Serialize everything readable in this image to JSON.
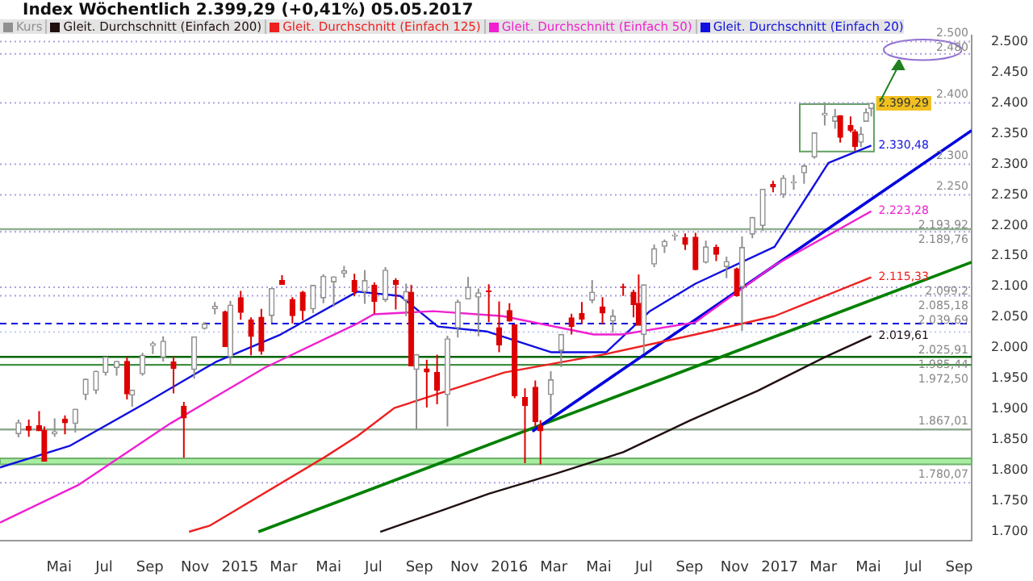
{
  "chart_data": {
    "type": "candlestick",
    "title": "Index   Wöchentlich   2.399,29 (+0,41%)   05.05.2017",
    "legend": "top left",
    "xlim": [
      "2014-02-10",
      "2017-09-18"
    ],
    "xticks": [
      {
        "value": "2014-05-01",
        "label": "Mai"
      },
      {
        "value": "2014-07-01",
        "label": "Jul"
      },
      {
        "value": "2014-09-01",
        "label": "Sep"
      },
      {
        "value": "2014-11-01",
        "label": "Nov"
      },
      {
        "value": "2015-01-01",
        "label": "2015"
      },
      {
        "value": "2015-03-01",
        "label": "Mar"
      },
      {
        "value": "2015-05-01",
        "label": "Mai"
      },
      {
        "value": "2015-07-01",
        "label": "Jul"
      },
      {
        "value": "2015-09-01",
        "label": "Sep"
      },
      {
        "value": "2015-11-01",
        "label": "Nov"
      },
      {
        "value": "2016-01-01",
        "label": "2016"
      },
      {
        "value": "2016-03-01",
        "label": "Mar"
      },
      {
        "value": "2016-05-01",
        "label": "Mai"
      },
      {
        "value": "2016-07-01",
        "label": "Jul"
      },
      {
        "value": "2016-09-01",
        "label": "Sep"
      },
      {
        "value": "2016-11-01",
        "label": "Nov"
      },
      {
        "value": "2017-01-01",
        "label": "2017"
      },
      {
        "value": "2017-03-01",
        "label": "Mar"
      },
      {
        "value": "2017-05-01",
        "label": "Mai"
      },
      {
        "value": "2017-07-01",
        "label": "Jul"
      },
      {
        "value": "2017-09-01",
        "label": "Sep"
      }
    ],
    "ylim": [
      1685,
      2510
    ],
    "yticks": [
      {
        "value": 1700,
        "label": "1.700"
      },
      {
        "value": 1750,
        "label": "1.750"
      },
      {
        "value": 1800,
        "label": "1.800"
      },
      {
        "value": 1850,
        "label": "1.850"
      },
      {
        "value": 1900,
        "label": "1.900"
      },
      {
        "value": 1950,
        "label": "1.950"
      },
      {
        "value": 2000,
        "label": "2.000"
      },
      {
        "value": 2050,
        "label": "2.050"
      },
      {
        "value": 2100,
        "label": "2.100"
      },
      {
        "value": 2150,
        "label": "2.150"
      },
      {
        "value": 2200,
        "label": "2.200"
      },
      {
        "value": 2250,
        "label": "2.250"
      },
      {
        "value": 2300,
        "label": "2.300"
      },
      {
        "value": 2350,
        "label": "2.350"
      },
      {
        "value": 2400,
        "label": "2.400"
      },
      {
        "value": 2450,
        "label": "2.450"
      },
      {
        "value": 2500,
        "label": "2.500"
      }
    ],
    "ref_lines": [
      {
        "axis": "y",
        "value": 2500,
        "label": "2.500",
        "color": "#b0a0e0",
        "line_style": "dotted"
      },
      {
        "axis": "y",
        "value": 2480,
        "label": "2.480",
        "color": "#b0a0e0",
        "line_style": "dotted"
      },
      {
        "axis": "y",
        "value": 2400,
        "label": "2.400",
        "color": "#b0a0e0",
        "line_style": "dotted"
      },
      {
        "axis": "y",
        "value": 2300,
        "label": "2.300",
        "color": "#b0a0e0",
        "line_style": "dotted"
      },
      {
        "axis": "y",
        "value": 2250,
        "label": "2.250",
        "color": "#b0a0e0",
        "line_style": "dotted"
      },
      {
        "axis": "y",
        "value": 2193.92,
        "label": "2.193,92",
        "color": "#90b090",
        "line_style": "solid"
      },
      {
        "axis": "y",
        "value": 2189.76,
        "label": "2.189,76",
        "color": "#b0a0e0",
        "line_style": "dotted"
      },
      {
        "axis": "y",
        "value": 2099.2,
        "label": "2.099,2",
        "color": "#b0a0e0",
        "line_style": "dotted"
      },
      {
        "axis": "y",
        "value": 2085.18,
        "label": "2.085,18",
        "color": "#b0a0e0",
        "line_style": "dotted"
      },
      {
        "axis": "y",
        "value": 2039.69,
        "label": "2.039,69",
        "color": "#0000e0",
        "line_style": "dashed"
      },
      {
        "axis": "y",
        "value": 2025.91,
        "label": "2.025,91",
        "color": "#c0c8f0",
        "line_style": "dotted"
      },
      {
        "axis": "y",
        "value": 1985.44,
        "label": "1.985,44",
        "color": "#006400",
        "line_style": "solid"
      },
      {
        "axis": "y",
        "value": 1972.5,
        "label": "1.972,50",
        "color": "#409040",
        "line_style": "solid"
      },
      {
        "axis": "y",
        "value": 1867.01,
        "label": "1.867,01",
        "color": "#90a890",
        "line_style": "solid"
      },
      {
        "axis": "y",
        "value": 1780.07,
        "label": "1.780,07",
        "color": "#b0a0e0",
        "line_style": "dotted"
      }
    ],
    "bands": [
      {
        "axis": "y",
        "from": 1810,
        "to": 1820,
        "color": "#a8eea0"
      }
    ],
    "series": [
      {
        "type": "candlestick",
        "name": "Kurs",
        "colors": [
          "#909090",
          "#dd0000",
          "#dd0000",
          "#dd0000",
          "#909090",
          "#dd0000",
          "#909090",
          "#909090",
          "#909090",
          "#909090",
          "#909090",
          "#dd0000",
          "#909090",
          "#909090",
          "#909090",
          "#909090",
          "#dd0000",
          "#dd0000",
          "#909090",
          "#909090",
          "#909090",
          "#dd0000",
          "#909090",
          "#dd0000",
          "#dd0000",
          "#dd0000",
          "#909090",
          "#dd0000",
          "#dd0000",
          "#dd0000",
          "#909090",
          "#909090",
          "#909090",
          "#909090",
          "#dd0000",
          "#909090",
          "#dd0000",
          "#909090",
          "#dd0000",
          "#909090",
          "#dd0000",
          "#909090",
          "#dd0000",
          "#dd0000",
          "#909090",
          "#909090",
          "#909090",
          "#909090",
          "#dd0000",
          "#dd0000",
          "#dd0000",
          "#dd0000",
          "#dd0000",
          "#dd0000",
          "#dd0000",
          "#909090",
          "#909090",
          "#dd0000",
          "#dd0000",
          "#909090",
          "#dd0000",
          "#909090",
          "#dd0000",
          "#dd0000",
          "#dd0000",
          "#909090",
          "#909090",
          "#909090",
          "#909090",
          "#dd0000",
          "#dd0000",
          "#909090",
          "#dd0000",
          "#909090",
          "#dd0000",
          "#909090",
          "#909090",
          "#909090",
          "#dd0000",
          "#909090",
          "#909090",
          "#909090",
          "#909090",
          "#909090",
          "#909090",
          "#dd0000",
          "#dd0000",
          "#dd0000",
          "#909090",
          "#909090",
          "#909090"
        ],
        "x": [
          "2014-03-07",
          "2014-03-21",
          "2014-04-04",
          "2014-04-11",
          "2014-04-25",
          "2014-05-09",
          "2014-05-23",
          "2014-06-06",
          "2014-06-20",
          "2014-07-03",
          "2014-07-18",
          "2014-08-01",
          "2014-08-08",
          "2014-08-22",
          "2014-09-05",
          "2014-09-19",
          "2014-10-03",
          "2014-10-17",
          "2014-10-31",
          "2014-11-14",
          "2014-11-28",
          "2014-12-12",
          "2014-12-19",
          "2015-01-02",
          "2015-01-16",
          "2015-01-30",
          "2015-02-13",
          "2015-02-27",
          "2015-03-13",
          "2015-03-27",
          "2015-04-10",
          "2015-04-24",
          "2015-05-08",
          "2015-05-22",
          "2015-06-05",
          "2015-06-19",
          "2015-07-02",
          "2015-07-17",
          "2015-07-31",
          "2015-08-14",
          "2015-08-21",
          "2015-08-28",
          "2015-09-11",
          "2015-09-25",
          "2015-10-09",
          "2015-10-23",
          "2015-11-06",
          "2015-11-20",
          "2015-12-04",
          "2015-12-18",
          "2016-01-01",
          "2016-01-08",
          "2016-01-22",
          "2016-02-05",
          "2016-02-12",
          "2016-02-26",
          "2016-03-11",
          "2016-03-25",
          "2016-04-08",
          "2016-04-22",
          "2016-05-06",
          "2016-05-20",
          "2016-06-03",
          "2016-06-17",
          "2016-06-24",
          "2016-07-01",
          "2016-07-15",
          "2016-07-29",
          "2016-08-12",
          "2016-08-26",
          "2016-09-09",
          "2016-09-23",
          "2016-10-07",
          "2016-10-21",
          "2016-11-04",
          "2016-11-11",
          "2016-11-25",
          "2016-12-09",
          "2016-12-23",
          "2017-01-06",
          "2017-01-20",
          "2017-02-03",
          "2017-02-17",
          "2017-03-03",
          "2017-03-17",
          "2017-03-24",
          "2017-04-07",
          "2017-04-13",
          "2017-04-21",
          "2017-04-28",
          "2017-05-05"
        ],
        "ohlc": [
          [
            1860,
            1883,
            1854,
            1878
          ],
          [
            1872,
            1883,
            1855,
            1866
          ],
          [
            1873,
            1897,
            1865,
            1865
          ],
          [
            1865,
            1872,
            1815,
            1815
          ],
          [
            1860,
            1885,
            1855,
            1863
          ],
          [
            1884,
            1890,
            1859,
            1878
          ],
          [
            1877,
            1901,
            1862,
            1900
          ],
          [
            1924,
            1950,
            1915,
            1949
          ],
          [
            1931,
            1963,
            1925,
            1962
          ],
          [
            1960,
            1985,
            1955,
            1985
          ],
          [
            1968,
            1979,
            1955,
            1978
          ],
          [
            1978,
            1985,
            1916,
            1925
          ],
          [
            1923,
            1932,
            1904,
            1931
          ],
          [
            1958,
            1992,
            1955,
            1988
          ],
          [
            2004,
            2011,
            1990,
            2007
          ],
          [
            1985,
            2019,
            1978,
            2011
          ],
          [
            1977,
            1986,
            1926,
            1967
          ],
          [
            1905,
            1912,
            1821,
            1886
          ],
          [
            1965,
            2018,
            1950,
            2018
          ],
          [
            2032,
            2042,
            2030,
            2039
          ],
          [
            2064,
            2075,
            2055,
            2068
          ],
          [
            2059,
            2061,
            2002,
            2002
          ],
          [
            1986,
            2077,
            1972,
            2070
          ],
          [
            2082,
            2093,
            2046,
            2058
          ],
          [
            2046,
            2050,
            1988,
            2019
          ],
          [
            2050,
            2064,
            1989,
            1995
          ],
          [
            2053,
            2097,
            2041,
            2097
          ],
          [
            2110,
            2119,
            2103,
            2104
          ],
          [
            2079,
            2083,
            2040,
            2053
          ],
          [
            2091,
            2093,
            2045,
            2061
          ],
          [
            2064,
            2102,
            2057,
            2102
          ],
          [
            2082,
            2120,
            2073,
            2117
          ],
          [
            2108,
            2117,
            2067,
            2116
          ],
          [
            2122,
            2134,
            2115,
            2126
          ],
          [
            2110,
            2121,
            2085,
            2092
          ],
          [
            2092,
            2127,
            2072,
            2110
          ],
          [
            2102,
            2107,
            2056,
            2076
          ],
          [
            2079,
            2132,
            2075,
            2127
          ],
          [
            2110,
            2114,
            2063,
            2104
          ],
          [
            2078,
            2105,
            2052,
            2092
          ],
          [
            2091,
            2103,
            1971,
            1971
          ],
          [
            1965,
            1990,
            1867,
            1989
          ],
          [
            1966,
            1981,
            1903,
            1961
          ],
          [
            1960,
            1989,
            1908,
            1931
          ],
          [
            1924,
            2020,
            1872,
            2015
          ],
          [
            2033,
            2079,
            2017,
            2075
          ],
          [
            2080,
            2116,
            2080,
            2099
          ],
          [
            2083,
            2097,
            2019,
            2090
          ],
          [
            2093,
            2104,
            2042,
            2092
          ],
          [
            2033,
            2076,
            1993,
            2005
          ],
          [
            2061,
            2073,
            2043,
            2044
          ],
          [
            2038,
            2038,
            1918,
            1922
          ],
          [
            1919,
            1934,
            1812,
            1906
          ],
          [
            1936,
            1947,
            1872,
            1880
          ],
          [
            1873,
            1882,
            1810,
            1865
          ],
          [
            1924,
            1962,
            1891,
            1948
          ],
          [
            1996,
            2022,
            1969,
            2022
          ],
          [
            2049,
            2056,
            2022,
            2035
          ],
          [
            2056,
            2075,
            2039,
            2047
          ],
          [
            2078,
            2111,
            2073,
            2091
          ],
          [
            2067,
            2083,
            2039,
            2057
          ],
          [
            2044,
            2063,
            2025,
            2052
          ],
          [
            2100,
            2105,
            2085,
            2099
          ],
          [
            2091,
            2095,
            2050,
            2071
          ],
          [
            2073,
            2120,
            2037,
            2037
          ],
          [
            2022,
            2103,
            1991,
            2103
          ],
          [
            2137,
            2169,
            2132,
            2162
          ],
          [
            2166,
            2177,
            2155,
            2174
          ],
          [
            2183,
            2188,
            2175,
            2184
          ],
          [
            2180,
            2187,
            2160,
            2169
          ],
          [
            2181,
            2188,
            2127,
            2128
          ],
          [
            2140,
            2175,
            2138,
            2165
          ],
          [
            2164,
            2169,
            2142,
            2153
          ],
          [
            2133,
            2149,
            2114,
            2141
          ],
          [
            2129,
            2131,
            2084,
            2085
          ],
          [
            2100,
            2182,
            2028,
            2164
          ],
          [
            2186,
            2214,
            2179,
            2213
          ],
          [
            2200,
            2259,
            2191,
            2259
          ],
          [
            2267,
            2273,
            2254,
            2263
          ],
          [
            2251,
            2282,
            2245,
            2277
          ],
          [
            2270,
            2282,
            2258,
            2271
          ],
          [
            2286,
            2300,
            2268,
            2297
          ],
          [
            2312,
            2351,
            2309,
            2351
          ],
          [
            2380,
            2401,
            2363,
            2383
          ],
          [
            2370,
            2390,
            2358,
            2378
          ],
          [
            2379,
            2380,
            2335,
            2344
          ],
          [
            2363,
            2378,
            2352,
            2355
          ],
          [
            2353,
            2357,
            2322,
            2329
          ],
          [
            2336,
            2361,
            2328,
            2349
          ],
          [
            2370,
            2391,
            2369,
            2384
          ],
          [
            2391,
            2400,
            2378,
            2399.29
          ]
        ],
        "value_labels": [
          null,
          null,
          null,
          null,
          null,
          null,
          null,
          null,
          null,
          null,
          null,
          null,
          null,
          null,
          null,
          null,
          null,
          null,
          null,
          null,
          null,
          null,
          null,
          null,
          null,
          null,
          null,
          null,
          null,
          null,
          null,
          null,
          null,
          null,
          null,
          null,
          null,
          null,
          null,
          null,
          null,
          null,
          null,
          null,
          null,
          null,
          null,
          null,
          null,
          null,
          null,
          null,
          null,
          null,
          null,
          null,
          null,
          null,
          null,
          null,
          null,
          null,
          null,
          null,
          null,
          null,
          null,
          null,
          null,
          null,
          null,
          null,
          null,
          null,
          null,
          null,
          null,
          null,
          null,
          null,
          null,
          null,
          null,
          null,
          null,
          null,
          null,
          null,
          null,
          null,
          "2.399,29"
        ]
      },
      {
        "type": "line",
        "name": "Gleit. Durchschnitt (Einfach 200)",
        "color": "#201010",
        "x": [
          "2015-07-10",
          "2015-10-02",
          "2015-12-04",
          "2016-03-04",
          "2016-06-03",
          "2016-09-02",
          "2016-12-02",
          "2017-03-03",
          "2017-05-05"
        ],
        "values": [
          1700,
          1735,
          1762,
          1795,
          1830,
          1882,
          1930,
          1985,
          2019.61
        ],
        "value_labels": [
          null,
          null,
          null,
          null,
          null,
          null,
          null,
          null,
          "2.019,61"
        ]
      },
      {
        "type": "line",
        "name": "Gleit. Durchschnitt (Einfach 125)",
        "color": "#ee2020",
        "x": [
          "2014-10-24",
          "2014-11-21",
          "2015-04-26",
          "2015-06-09",
          "2015-07-29",
          "2015-12-25",
          "2016-05-10",
          "2016-09-09",
          "2016-12-25",
          "2017-05-05"
        ],
        "values": [
          1700,
          1710,
          1822,
          1856,
          1902,
          1960,
          1990,
          2022,
          2052,
          2115.33
        ],
        "value_labels": [
          null,
          null,
          null,
          null,
          null,
          null,
          null,
          null,
          null,
          "2.115,33"
        ]
      },
      {
        "type": "line",
        "name": "Gleit. Durchschnitt (Einfach 50)",
        "color": "#f020d0",
        "x": [
          "2014-02-10",
          "2014-05-28",
          "2014-09-29",
          "2015-02-04",
          "2015-06-09",
          "2015-07-01",
          "2015-09-20",
          "2015-12-23",
          "2016-04-24",
          "2016-06-01",
          "2016-09-09",
          "2016-09-20",
          "2016-12-25",
          "2017-05-05"
        ],
        "values": [
          1715,
          1777,
          1877,
          1968,
          2040,
          2055,
          2060,
          2052,
          2022,
          2022,
          2042,
          2052,
          2135,
          2223.28
        ],
        "value_labels": [
          null,
          null,
          null,
          null,
          null,
          null,
          null,
          null,
          null,
          null,
          null,
          null,
          null,
          "2.223,28"
        ]
      },
      {
        "type": "line",
        "name": "Gleit. Durchschnitt (Einfach 20)",
        "color": "#1010e0",
        "x": [
          "2014-02-10",
          "2014-05-15",
          "2014-08-26",
          "2014-11-29",
          "2015-02-25",
          "2015-06-09",
          "2015-08-06",
          "2015-09-26",
          "2015-12-01",
          "2016-02-27",
          "2016-05-11",
          "2016-07-09",
          "2016-09-09",
          "2016-12-25",
          "2017-03-08",
          "2017-05-05"
        ],
        "values": [
          1805,
          1840,
          1910,
          1977,
          2022,
          2092,
          2085,
          2035,
          2027,
          1993,
          1993,
          2060,
          2105,
          2165,
          2302,
          2330.48
        ],
        "value_labels": [
          null,
          null,
          null,
          null,
          null,
          null,
          null,
          null,
          null,
          null,
          null,
          null,
          null,
          null,
          null,
          "2.330,48"
        ]
      },
      {
        "type": "line",
        "color": "#0000e0",
        "x": [
          "2016-02-01",
          "2017-09-18"
        ],
        "values": [
          1864,
          2355
        ]
      },
      {
        "type": "line",
        "color": "#008000",
        "x": [
          "2015-01-26",
          "2017-09-18"
        ],
        "values": [
          1700,
          2140
        ]
      }
    ]
  }
}
